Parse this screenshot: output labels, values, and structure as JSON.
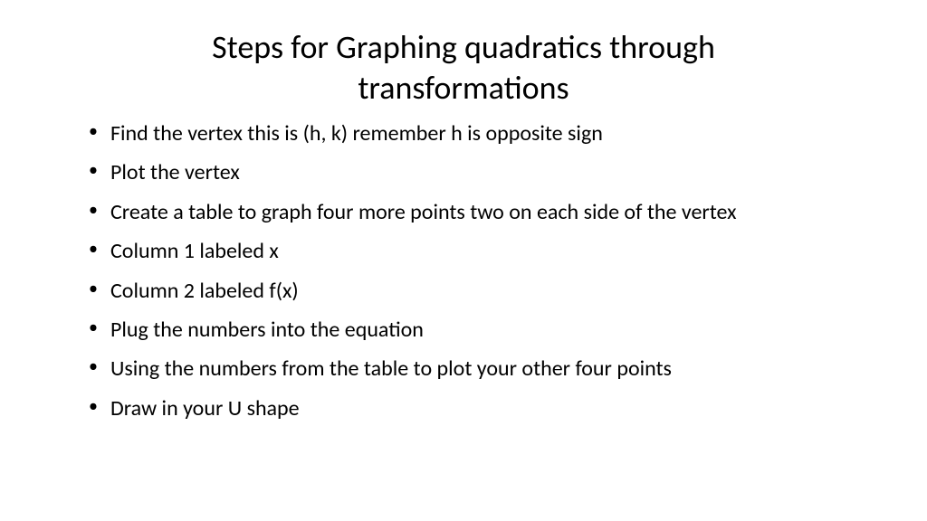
{
  "slide": {
    "title": "Steps for Graphing quadratics through transformations",
    "title_fontsize": 36,
    "title_color": "#000000",
    "background_color": "#ffffff",
    "bullets": [
      "Find the vertex this is (h, k) remember h is opposite sign",
      "Plot the vertex",
      "Create a table to graph four more points two on each side of the vertex",
      "Column 1 labeled x",
      "Column 2 labeled f(x)",
      "Plug the numbers into the equation",
      "Using the numbers from the table to plot your other four points",
      "Draw in your U shape"
    ],
    "bullet_fontsize": 24,
    "bullet_color": "#000000",
    "font_family": "Calibri"
  }
}
